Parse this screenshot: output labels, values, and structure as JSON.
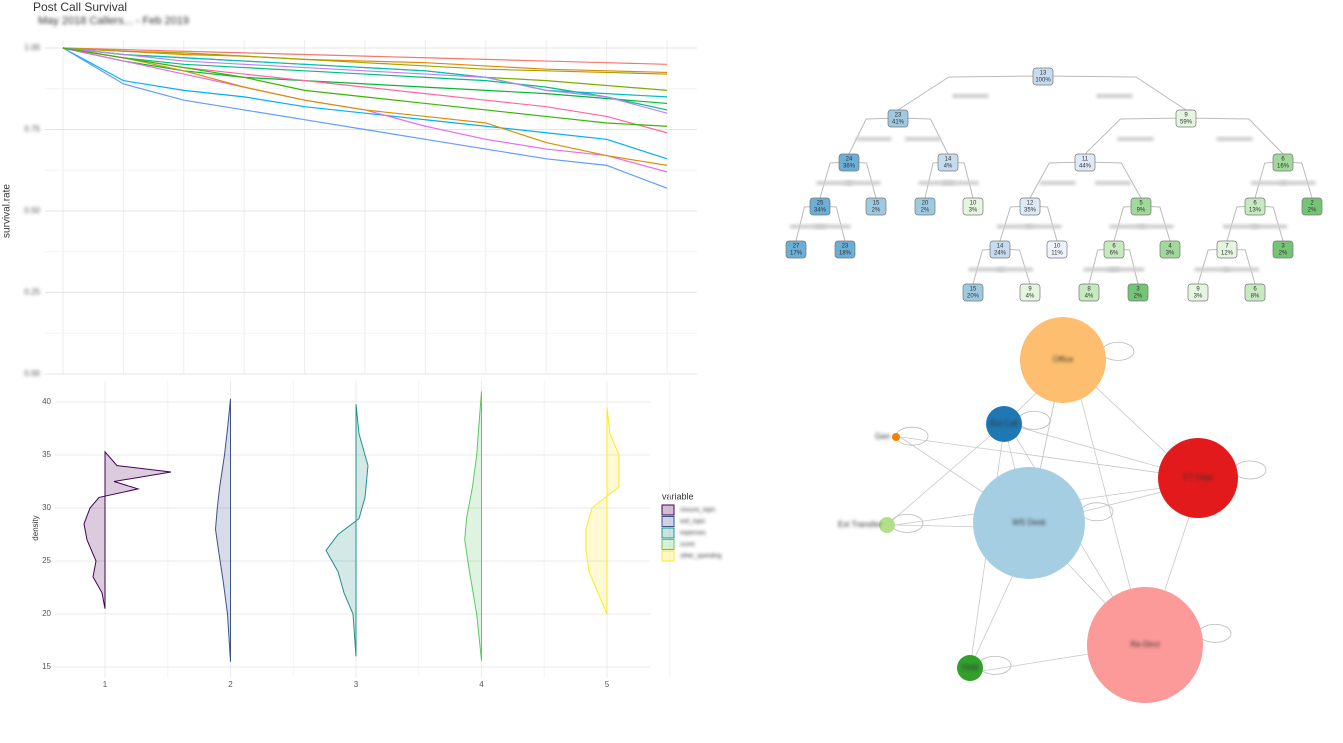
{
  "chart_data": [
    {
      "type": "line",
      "title": "Post Call Survival",
      "subtitle": "May 2018 Callers... - Feb 2019",
      "y_label": "survival.rate",
      "categories": [
        null,
        null,
        null,
        null,
        null,
        null,
        null,
        null,
        null,
        null,
        null
      ],
      "ylim": [
        0,
        1
      ],
      "yticks": [
        {
          "value": 0,
          "label": "0.00"
        },
        {
          "value": 0.25,
          "label": "0.25"
        },
        {
          "value": 0.5,
          "label": "0.50"
        },
        {
          "value": 0.75,
          "label": "0.75"
        },
        {
          "value": 1,
          "label": "1.00"
        }
      ],
      "grid": true,
      "series": [
        {
          "color": "#F8766D",
          "values": [
            1,
            0.995,
            0.99,
            0.985,
            0.98,
            0.975,
            0.97,
            0.965,
            0.96,
            0.955,
            0.95
          ]
        },
        {
          "color": "#E58700",
          "values": [
            1,
            0.99,
            0.98,
            0.975,
            0.965,
            0.96,
            0.955,
            0.945,
            0.935,
            0.93,
            0.925
          ]
        },
        {
          "color": "#A3A500",
          "values": [
            1,
            0.99,
            0.985,
            0.975,
            0.965,
            0.955,
            0.945,
            0.935,
            0.93,
            0.925,
            0.92
          ]
        },
        {
          "color": "#7CAE00",
          "values": [
            1,
            0.98,
            0.97,
            0.96,
            0.95,
            0.94,
            0.93,
            0.91,
            0.9,
            0.885,
            0.87
          ]
        },
        {
          "color": "#00BA38",
          "values": [
            1,
            0.96,
            0.93,
            0.91,
            0.9,
            0.89,
            0.88,
            0.87,
            0.86,
            0.845,
            0.83
          ]
        },
        {
          "color": "#00BF7D",
          "values": [
            1,
            0.97,
            0.95,
            0.94,
            0.93,
            0.92,
            0.91,
            0.9,
            0.88,
            0.85,
            0.81
          ]
        },
        {
          "color": "#00BFC4",
          "values": [
            1,
            0.98,
            0.97,
            0.96,
            0.95,
            0.94,
            0.93,
            0.91,
            0.87,
            0.86,
            0.85
          ]
        },
        {
          "color": "#00B0F6",
          "values": [
            1,
            0.9,
            0.87,
            0.85,
            0.82,
            0.8,
            0.78,
            0.76,
            0.74,
            0.72,
            0.66
          ]
        },
        {
          "color": "#619CFF",
          "values": [
            1,
            0.89,
            0.84,
            0.81,
            0.78,
            0.75,
            0.72,
            0.69,
            0.66,
            0.64,
            0.57
          ]
        },
        {
          "color": "#B983FF",
          "values": [
            1,
            0.98,
            0.96,
            0.95,
            0.94,
            0.93,
            0.92,
            0.91,
            0.87,
            0.85,
            0.8
          ]
        },
        {
          "color": "#E76BF3",
          "values": [
            1,
            0.96,
            0.92,
            0.88,
            0.84,
            0.81,
            0.76,
            0.72,
            0.69,
            0.67,
            0.62
          ]
        },
        {
          "color": "#FF67A4",
          "values": [
            1,
            0.97,
            0.94,
            0.92,
            0.9,
            0.88,
            0.86,
            0.84,
            0.82,
            0.79,
            0.74
          ]
        },
        {
          "color": "#D89000",
          "values": [
            1,
            0.97,
            0.93,
            0.88,
            0.84,
            0.81,
            0.79,
            0.77,
            0.71,
            0.67,
            0.64
          ]
        },
        {
          "color": "#39B600",
          "values": [
            1,
            0.97,
            0.94,
            0.91,
            0.87,
            0.85,
            0.83,
            0.81,
            0.79,
            0.77,
            0.76
          ]
        }
      ]
    },
    {
      "type": "violin",
      "y_label": "density",
      "legend_title": "variable",
      "categories": [
        "1",
        "2",
        "3",
        "4",
        "5"
      ],
      "ylim": [
        14,
        42
      ],
      "yticks": [
        15,
        20,
        25,
        30,
        35,
        40
      ],
      "grid": true,
      "series": [
        {
          "name": "closure_topic",
          "color": "#440154",
          "ys": [
            20.5,
            22,
            23.5,
            25,
            27,
            28.5,
            30,
            31,
            31.8,
            32.5,
            33.4,
            34,
            35.3
          ],
          "widths": [
            0,
            -0.05,
            -0.2,
            -0.15,
            -0.3,
            -0.35,
            -0.25,
            -0.1,
            0.55,
            0.15,
            1.1,
            0.2,
            0
          ]
        },
        {
          "name": "exit_topic",
          "color": "#3B528B",
          "ys": [
            15.5,
            20,
            23,
            26,
            28,
            30,
            32,
            35,
            38,
            40.3
          ],
          "widths": [
            0,
            -0.05,
            -0.12,
            -0.2,
            -0.25,
            -0.22,
            -0.18,
            -0.1,
            -0.04,
            0
          ]
        },
        {
          "name": "expenses",
          "color": "#21908C",
          "ys": [
            16,
            20,
            22,
            24,
            26,
            27.5,
            29,
            31,
            34,
            37,
            39.8
          ],
          "widths": [
            0,
            -0.05,
            -0.2,
            -0.3,
            -0.5,
            -0.3,
            0.05,
            0.15,
            0.2,
            0.05,
            0
          ]
        },
        {
          "name": "score",
          "color": "#5DC863",
          "ys": [
            15.6,
            20,
            24,
            27,
            29,
            32,
            35,
            38,
            41
          ],
          "widths": [
            0,
            -0.08,
            -0.2,
            -0.28,
            -0.25,
            -0.15,
            -0.08,
            -0.04,
            0
          ]
        },
        {
          "name": "other_spending",
          "color": "#FDE725",
          "ys": [
            20,
            22,
            24,
            26,
            28,
            30,
            32,
            35,
            37,
            39.5
          ],
          "widths": [
            0,
            -0.15,
            -0.3,
            -0.35,
            -0.35,
            -0.25,
            0.2,
            0.2,
            0.05,
            0
          ]
        }
      ]
    }
  ],
  "tree": {
    "nodes": [
      {
        "value": "13",
        "percent": "100%",
        "color": "#C6DBEF"
      },
      {
        "value": "23",
        "percent": "41%",
        "color": "#9ECAE1"
      },
      {
        "value": "9",
        "percent": "59%",
        "color": "#E5F5E0"
      },
      {
        "value": "24",
        "percent": "36%",
        "color": "#6BAED6"
      },
      {
        "value": "14",
        "percent": "4%",
        "color": "#C6DBEF"
      },
      {
        "value": "11",
        "percent": "44%",
        "color": "#DEEBF7"
      },
      {
        "value": "6",
        "percent": "16%",
        "color": "#A1D99B"
      },
      {
        "value": "25",
        "percent": "34%",
        "color": "#6BAED6"
      },
      {
        "value": "15",
        "percent": "2%",
        "color": "#9ECAE1"
      },
      {
        "value": "20",
        "percent": "2%",
        "color": "#9ECAE1"
      },
      {
        "value": "10",
        "percent": "3%",
        "color": "#E5F5E0"
      },
      {
        "value": "12",
        "percent": "35%",
        "color": "#DEEBF7"
      },
      {
        "value": "5",
        "percent": "9%",
        "color": "#A1D99B"
      },
      {
        "value": "6",
        "percent": "13%",
        "color": "#C7E9C0"
      },
      {
        "value": "2",
        "percent": "2%",
        "color": "#74C476"
      },
      {
        "value": "27",
        "percent": "17%",
        "color": "#6BAED6"
      },
      {
        "value": "23",
        "percent": "18%",
        "color": "#6BAED6"
      },
      {
        "value": "14",
        "percent": "24%",
        "color": "#C6DBEF"
      },
      {
        "value": "10",
        "percent": "11%",
        "color": "#EFF3FF"
      },
      {
        "value": "6",
        "percent": "6%",
        "color": "#C7E9C0"
      },
      {
        "value": "4",
        "percent": "3%",
        "color": "#A1D99B"
      },
      {
        "value": "7",
        "percent": "12%",
        "color": "#E5F5E0"
      },
      {
        "value": "3",
        "percent": "2%",
        "color": "#74C476"
      },
      {
        "value": "15",
        "percent": "20%",
        "color": "#9ECAE1"
      },
      {
        "value": "9",
        "percent": "4%",
        "color": "#E5F5E0"
      },
      {
        "value": "8",
        "percent": "4%",
        "color": "#C7E9C0"
      },
      {
        "value": "3",
        "percent": "2%",
        "color": "#74C476"
      },
      {
        "value": "9",
        "percent": "3%",
        "color": "#E5F5E0"
      },
      {
        "value": "6",
        "percent": "8%",
        "color": "#C7E9C0"
      }
    ],
    "edges": [
      [
        0,
        1
      ],
      [
        0,
        2
      ],
      [
        1,
        3
      ],
      [
        1,
        4
      ],
      [
        3,
        7
      ],
      [
        3,
        8
      ],
      [
        7,
        15
      ],
      [
        7,
        16
      ],
      [
        4,
        9
      ],
      [
        4,
        10
      ],
      [
        2,
        5
      ],
      [
        2,
        6
      ],
      [
        5,
        11
      ],
      [
        5,
        12
      ],
      [
        11,
        17
      ],
      [
        11,
        18
      ],
      [
        17,
        23
      ],
      [
        17,
        24
      ],
      [
        12,
        19
      ],
      [
        12,
        20
      ],
      [
        19,
        25
      ],
      [
        19,
        26
      ],
      [
        6,
        13
      ],
      [
        6,
        14
      ],
      [
        13,
        21
      ],
      [
        13,
        22
      ],
      [
        21,
        27
      ],
      [
        21,
        28
      ]
    ]
  },
  "network": {
    "nodes": [
      {
        "label": "Office",
        "color": "#FDBF6F"
      },
      {
        "label": "Bot Call",
        "color": "#1F78B4"
      },
      {
        "label": "FT Dept",
        "color": "#E31A1C"
      },
      {
        "label": "WS Desk",
        "color": "#A6CEE3"
      },
      {
        "label": "Re-Dirct",
        "color": "#FB9A99"
      },
      {
        "label": "Gen",
        "color": "#FF7F00"
      },
      {
        "label": "Ext Transfer",
        "color": "#B2DF8A"
      },
      {
        "label": "Hold",
        "color": "#33A02C"
      }
    ]
  }
}
